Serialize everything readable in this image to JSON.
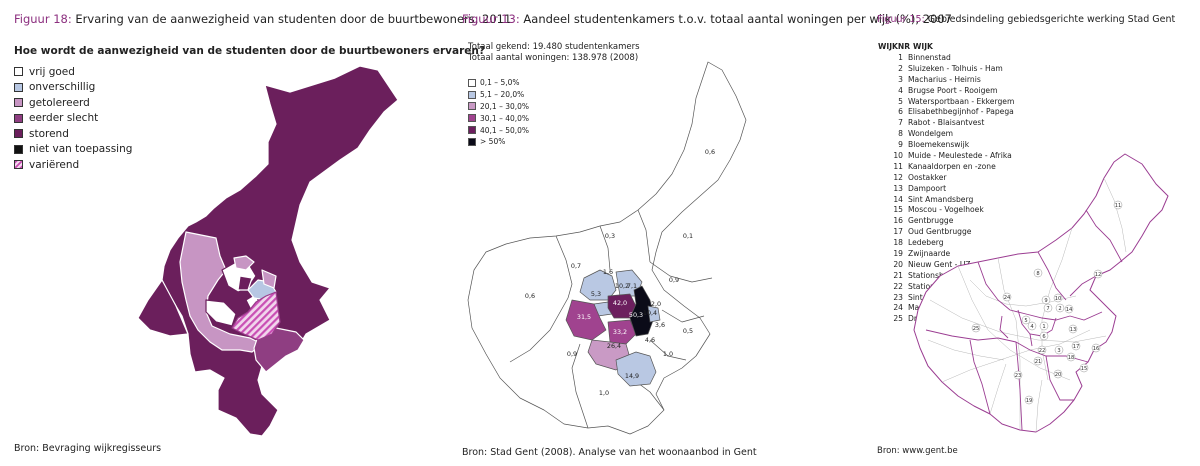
{
  "fig18": {
    "number": "Figuur 18:",
    "title": "Ervaring van de aanwezigheid van studenten door de buurtbewoners, 2011",
    "question": "Hoe wordt de aanwezigheid van de studenten door de buurtbewoners ervaren?",
    "legend": [
      {
        "label": "vrij goed",
        "color": "#ffffff"
      },
      {
        "label": "onverschillig",
        "color": "#b7c7e3"
      },
      {
        "label": "getolereerd",
        "color": "#c795c3"
      },
      {
        "label": "eerder slecht",
        "color": "#8f3e82"
      },
      {
        "label": "storend",
        "color": "#6b1f5c"
      },
      {
        "label": "niet van toepassing",
        "color": "#111111"
      },
      {
        "label": "variërend",
        "color": "hatch"
      }
    ],
    "source": "Bron: Bevraging wijkregisseurs"
  },
  "fig13": {
    "number": "Figuur 13:",
    "title": "Aandeel studentenkamers t.o.v. totaal aantal woningen per wijk (%), 2007",
    "total_rooms": "Totaal gekend: 19.480 studentenkamers",
    "total_dwellings": "Totaal aantal woningen: 138.978 (2008)",
    "legend": [
      {
        "label": "0,1 – 5,0%",
        "color": "#ffffff"
      },
      {
        "label": "5,1 – 20,0%",
        "color": "#b9c8e3"
      },
      {
        "label": "20,1 – 30,0%",
        "color": "#c99ac5"
      },
      {
        "label": "30,1 – 40,0%",
        "color": "#a0438f"
      },
      {
        "label": "40,1 – 50,0%",
        "color": "#6c1f5e"
      },
      {
        "label": "> 50%",
        "color": "#0b0b18"
      }
    ],
    "map_labels": [
      "0,6",
      "0,3",
      "0,1",
      "0,7",
      "0,6",
      "0,9",
      "1,6",
      "7,1",
      "5,3",
      "10,2",
      "42,0",
      "2,0",
      "50,3",
      "10,4",
      "31,5",
      "33,2",
      "3,6",
      "26,4",
      "4,6",
      "0,9",
      "1,0",
      "14,9",
      "0,5",
      "1,0"
    ],
    "source": "Bron: Stad Gent (2008). Analyse van het woonaanbod in Gent"
  },
  "fig15": {
    "number": "Figuur 15:",
    "title": "Gebiedsindeling gebiedsgerichte werking Stad Gent",
    "col_nr": "WIJKNR",
    "col_name": "WIJK",
    "districts": [
      {
        "nr": "1",
        "name": "Binnenstad"
      },
      {
        "nr": "2",
        "name": "Sluizeken - Tolhuis - Ham"
      },
      {
        "nr": "3",
        "name": "Macharius - Heirnis"
      },
      {
        "nr": "4",
        "name": "Brugse Poort - Rooigem"
      },
      {
        "nr": "5",
        "name": "Watersportbaan - Ekkergem"
      },
      {
        "nr": "6",
        "name": "Elisabethbegijnhof - Papega"
      },
      {
        "nr": "7",
        "name": "Rabot - Blaisantvest"
      },
      {
        "nr": "8",
        "name": "Wondelgem"
      },
      {
        "nr": "9",
        "name": "Bloemekenswijk"
      },
      {
        "nr": "10",
        "name": "Muide - Meulestede - Afrika"
      },
      {
        "nr": "11",
        "name": "Kanaaldorpen en -zone"
      },
      {
        "nr": "12",
        "name": "Oostakker"
      },
      {
        "nr": "13",
        "name": "Dampoort"
      },
      {
        "nr": "14",
        "name": "Sint Amandsberg"
      },
      {
        "nr": "15",
        "name": "Moscou - Vogelhoek"
      },
      {
        "nr": "16",
        "name": "Gentbrugge"
      },
      {
        "nr": "17",
        "name": "Oud Gentbrugge"
      },
      {
        "nr": "18",
        "name": "Ledeberg"
      },
      {
        "nr": "19",
        "name": "Zwijnaarde"
      },
      {
        "nr": "20",
        "name": "Nieuw Gent - UZ"
      },
      {
        "nr": "21",
        "name": "Stationsbuurt Zuid"
      },
      {
        "nr": "22",
        "name": "Stationsbuurt Noord"
      },
      {
        "nr": "23",
        "name": "Sint Denijs Westrem"
      },
      {
        "nr": "24",
        "name": "Mariakerke"
      },
      {
        "nr": "25",
        "name": "Drongen"
      }
    ],
    "map_labels": [
      "11",
      "12",
      "8",
      "9",
      "10",
      "24",
      "7",
      "2",
      "14",
      "5",
      "4",
      "1",
      "6",
      "13",
      "22",
      "3",
      "17",
      "16",
      "25",
      "21",
      "18",
      "15",
      "23",
      "20",
      "19"
    ],
    "outline_color": "#9b3d92",
    "source": "Bron: www.gent.be"
  }
}
